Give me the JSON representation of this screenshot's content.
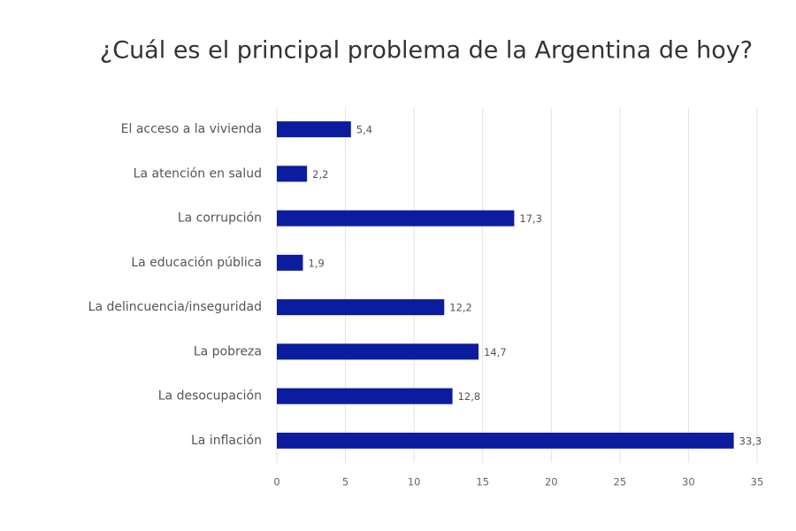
{
  "chart_data": {
    "type": "bar",
    "orientation": "horizontal",
    "title": "¿Cuál es el principal problema de la Argentina de hoy?",
    "categories": [
      "El acceso a la vivienda",
      "La atención en salud",
      "La corrupción",
      "La educación pública",
      "La delincuencia/inseguridad",
      "La pobreza",
      "La desocupación",
      "La inflación"
    ],
    "values": [
      5.4,
      2.2,
      17.3,
      1.9,
      12.2,
      14.7,
      12.8,
      33.3
    ],
    "value_labels": [
      "5,4",
      "2,2",
      "17,3",
      "1,9",
      "12,2",
      "14,7",
      "12,8",
      "33,3"
    ],
    "color": "#0b1c9e",
    "xlim": [
      0,
      35
    ],
    "xticks": [
      0,
      5,
      10,
      15,
      20,
      25,
      30,
      35
    ],
    "grid": true
  }
}
